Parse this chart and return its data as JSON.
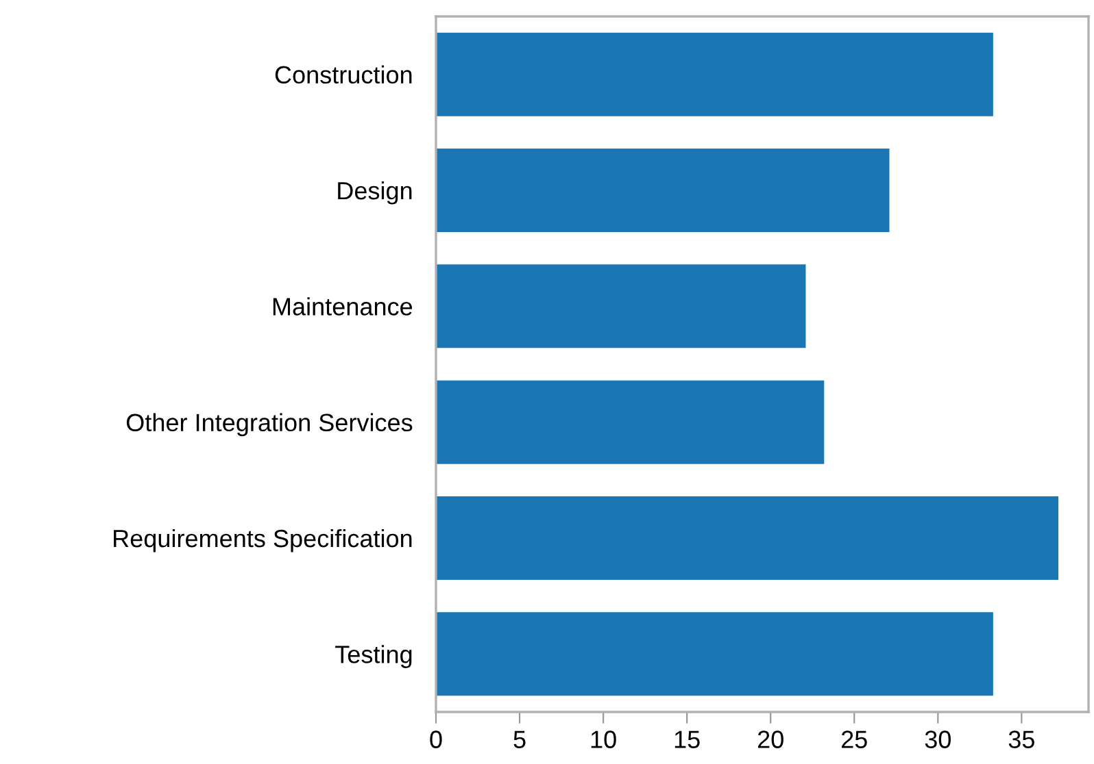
{
  "chart_data": {
    "type": "bar",
    "orientation": "horizontal",
    "categories": [
      "Construction",
      "Design",
      "Maintenance",
      "Other Integration Services",
      "Requirements Specification",
      "Testing"
    ],
    "values": [
      33.3,
      27.1,
      22.1,
      23.2,
      37.2,
      33.3
    ],
    "color": "#1a77b4",
    "xlim": [
      0,
      39
    ],
    "xticks": [
      0,
      5,
      10,
      15,
      20,
      25,
      30,
      35
    ],
    "grid": false
  }
}
